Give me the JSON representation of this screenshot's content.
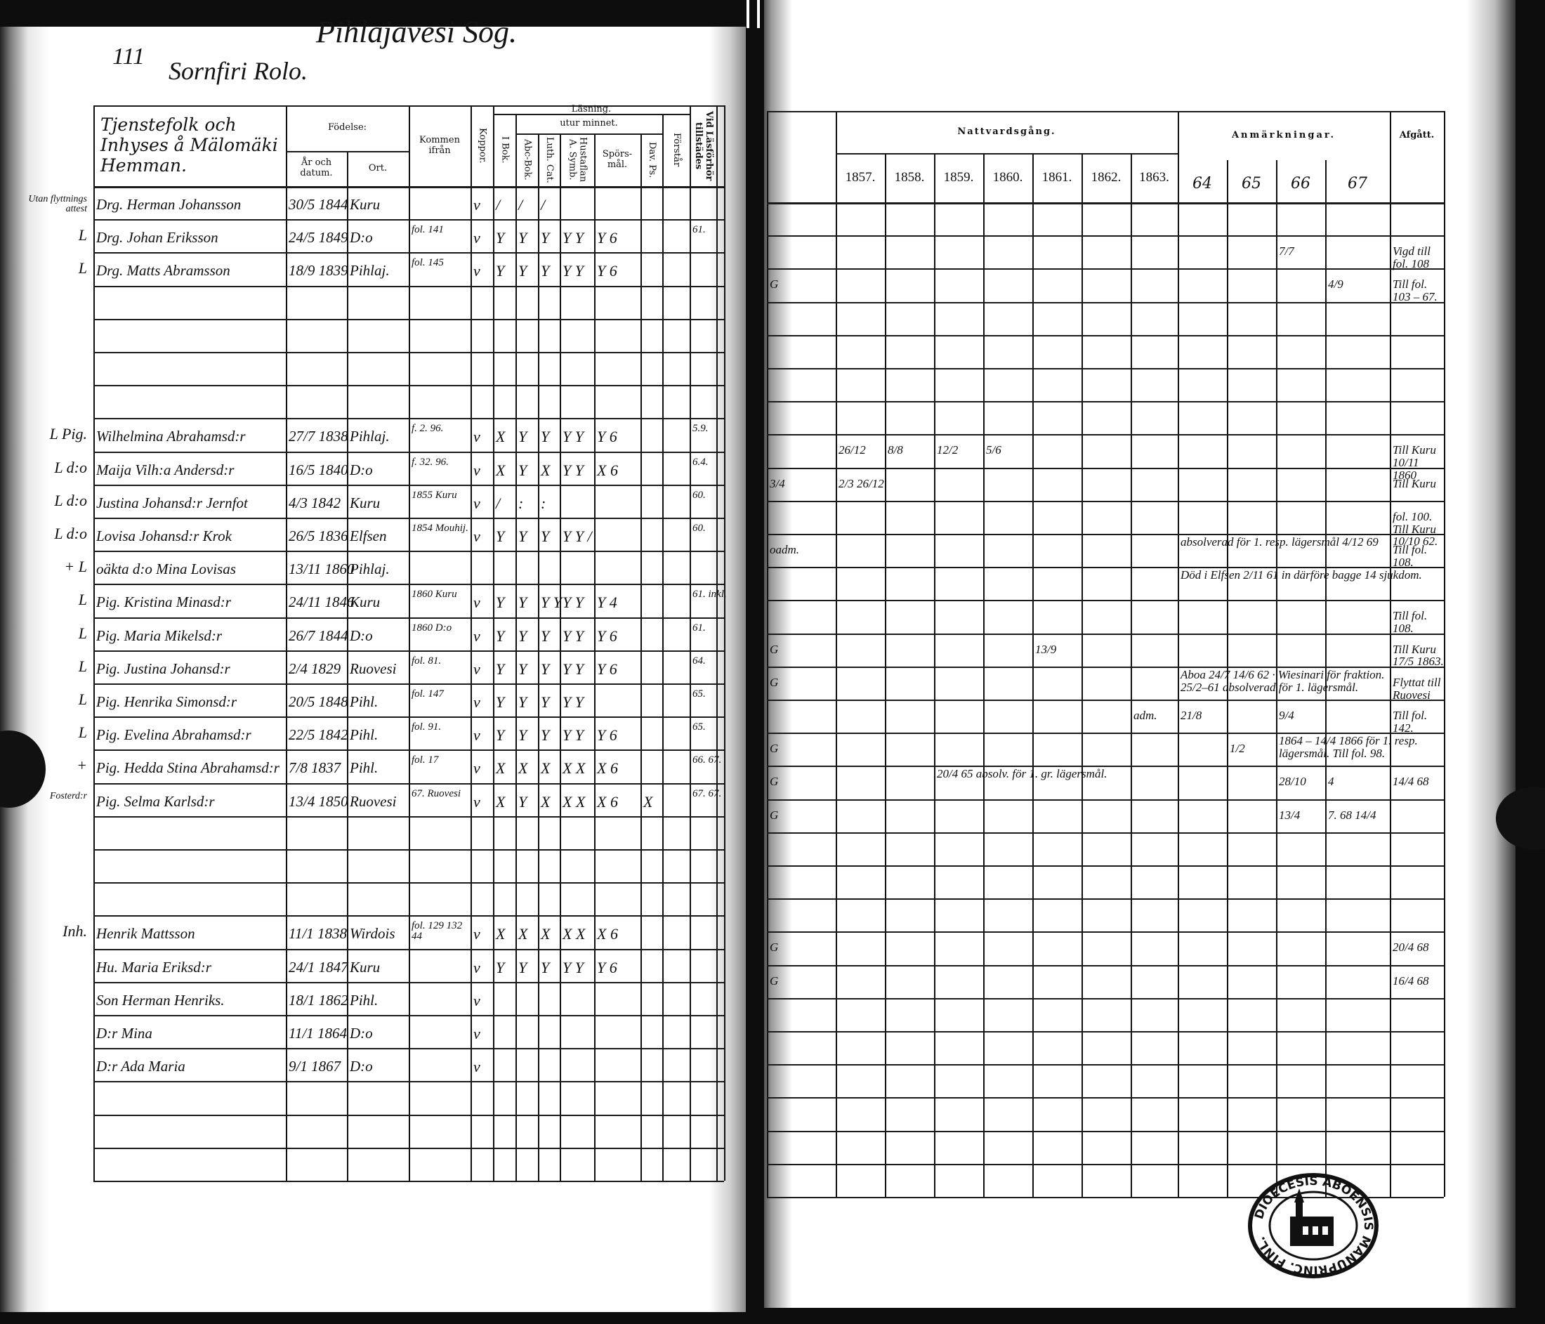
{
  "document": {
    "page_number": "111",
    "parish_heading": "Pihlajavesi Sog.",
    "section_heading": "Sornfiri Rolo.",
    "left_header": {
      "household": "Tjenstefolk och Inhyses å Mälomäki Hemman.",
      "birth": "Födelse:",
      "birth_date": "År och datum.",
      "birth_place": "Ort.",
      "came_from": "Kommen ifrån",
      "koppor": "Koppor.",
      "reading": "Läsning.",
      "by_heart": "utur minnet.",
      "i_bok": "I Bok.",
      "abc_bok": "Abc-Bok.",
      "luth_cat": "Luth. Cat.",
      "hustaflan": "Hustaflan A. Symb.",
      "sporsmal": "Spörs-mål.",
      "dav_ps": "Dav. Ps.",
      "forstar": "Förstår",
      "vid_lasforhor": "Vid Läsförhör tillstädes"
    },
    "right_header": {
      "communion": "Nattvardsgång.",
      "years": [
        "1857.",
        "1858.",
        "1859.",
        "1860.",
        "1861.",
        "1862.",
        "1863."
      ],
      "remarks": "Anmärkningar.",
      "remark_years": [
        "64",
        "65",
        "66",
        "67"
      ],
      "departed": "Afgått."
    },
    "stamp": "DIOECESIS ABOENSIS MANUPRINC. FINL."
  },
  "rows": [
    {
      "margin": "Utan flyttnings attest",
      "name": "Drg. Herman Johansson",
      "born": "30/5 1844",
      "place": "Kuru",
      "koppor": "v",
      "i_bok": "/",
      "abc": "/",
      "luth": "/"
    },
    {
      "margin": "L",
      "name": "Drg. Johan Eriksson",
      "born": "24/5 1849",
      "place": "D:o",
      "from": "fol. 141",
      "koppor": "v",
      "i_bok": "Y",
      "abc": "Y",
      "luth": "Y",
      "husfl": "Y Y",
      "spors": "Y   6",
      "vid": "61.",
      "a66": "7/7",
      "afgatt": "Vigd till fol. 108"
    },
    {
      "margin": "L",
      "name": "Drg. Matts Abramsson",
      "born": "18/9 1839",
      "place": "Pihlaj.",
      "from": "fol. 145",
      "koppor": "v",
      "i_bok": "Y",
      "abc": "Y",
      "luth": "Y",
      "husfl": "Y Y",
      "spors": "Y   6",
      "pre": "G",
      "a67": "4/9",
      "afgatt": "Till fol. 103 – 67."
    },
    {},
    {},
    {},
    {},
    {
      "margin": "L Pig.",
      "name": "Wilhelmina Abrahamsd:r",
      "born": "27/7 1838",
      "place": "Pihlaj.",
      "from": "f. 2. 96.",
      "koppor": "v",
      "i_bok": "X",
      "abc": "Y",
      "luth": "Y",
      "husfl": "Y Y",
      "spors": "Y   6",
      "vid": "5.9.",
      "n1857": "26/12",
      "n1858": "8/8",
      "n1859": "12/2",
      "n1860": "5/6",
      "afgatt": "Till Kuru 10/11 1860"
    },
    {
      "margin": "L d:o",
      "name": "Maija Vilh:a Andersd:r",
      "born": "16/5 1840",
      "place": "D:o",
      "from": "f. 32. 96.",
      "koppor": "v",
      "i_bok": "X",
      "abc": "Y",
      "luth": "X",
      "husfl": "Y Y",
      "spors": "X   6",
      "vid": "6.4.",
      "pre": "3/4",
      "n1857": "2/3  26/12",
      "afgatt": "Till Kuru"
    },
    {
      "margin": "L d:o",
      "name": "Justina Johansd:r Jernfot",
      "born": "4/3 1842",
      "place": "Kuru",
      "from": "1855 Kuru",
      "koppor": "v",
      "i_bok": "/",
      "abc": ":",
      "luth": ":",
      "vid": "60.",
      "afgatt": "fol. 100. Till Kuru 10/10 62."
    },
    {
      "margin": "L d:o",
      "name": "Lovisa Johansd:r Krok",
      "born": "26/5 1836",
      "place": "Elfsen",
      "from": "1854 Mouhij.",
      "koppor": "v",
      "i_bok": "Y",
      "abc": "Y",
      "luth": "Y",
      "husfl": "Y Y /",
      "vid": "60.",
      "pre": "oadm.",
      "a64": "absolverad för 1. resp. lägersmål 4/12 69",
      "afgatt": "Till fol. 108."
    },
    {
      "margin": "+ L",
      "name": "oäkta d:o Mina Lovisas",
      "born": "13/11 1860",
      "place": "Pihlaj.",
      "a64": "Död i Elfsen 2/11 61 in därföre bagge 14 sjukdom."
    },
    {
      "margin": "L",
      "name": "Pig. Kristina Minasd:r",
      "born": "24/11 1846",
      "place": "Kuru",
      "from": "1860 Kuru",
      "koppor": "v",
      "i_bok": "Y",
      "abc": "Y",
      "luth": "Y Y",
      "husfl": "Y Y",
      "spors": "Y   4",
      "vid": "61. inkl.",
      "afgatt": "Till fol. 108."
    },
    {
      "margin": "L",
      "name": "Pig. Maria Mikelsd:r",
      "born": "26/7 1844",
      "place": "D:o",
      "from": "1860 D:o",
      "koppor": "v",
      "i_bok": "Y",
      "abc": "Y",
      "luth": "Y",
      "husfl": "Y Y",
      "spors": "Y   6",
      "vid": "61.",
      "pre": "G",
      "n1861": "13/9",
      "afgatt": "Till Kuru 17/5 1863."
    },
    {
      "margin": "L",
      "name": "Pig. Justina Johansd:r",
      "born": "2/4 1829",
      "place": "Ruovesi",
      "from": "fol. 81.",
      "koppor": "v",
      "i_bok": "Y",
      "abc": "Y",
      "luth": "Y",
      "husfl": "Y Y",
      "spors": "Y   6",
      "vid": "64.",
      "pre": "G",
      "a64": "Aboa 24/7 14/6 62 · Wiesinari för fraktion. 25/2–61 absolverad för 1. lägersmål.",
      "afgatt": "Flyttat till Ruovesi"
    },
    {
      "margin": "L",
      "name": "Pig. Henrika Simonsd:r",
      "born": "20/5 1848",
      "place": "Pihl.",
      "from": "fol. 147",
      "koppor": "v",
      "i_bok": "Y",
      "abc": "Y",
      "luth": "Y",
      "husfl": "Y Y",
      "vid": "65.",
      "n1863": "adm.",
      "a64": "21/8",
      "a66": "9/4",
      "afgatt": "Till fol. 142."
    },
    {
      "margin": "L",
      "name": "Pig. Evelina Abrahamsd:r",
      "born": "22/5 1842",
      "place": "Pihl.",
      "from": "fol. 91.",
      "koppor": "v",
      "i_bok": "Y",
      "abc": "Y",
      "luth": "Y",
      "husfl": "Y Y",
      "spors": "Y   6",
      "vid": "65.",
      "pre": "G",
      "a65": "1/2",
      "a66": "1864 – 14/4 1866 för 1. resp. lägersmål. Till fol. 98."
    },
    {
      "margin": "+",
      "name": "Pig. Hedda Stina Abrahamsd:r",
      "born": "7/8 1837",
      "place": "Pihl.",
      "from": "fol. 17",
      "koppor": "v",
      "i_bok": "X",
      "abc": "X",
      "luth": "X",
      "husfl": "X X",
      "spors": "X   6",
      "vid": "66. 67.",
      "pre": "G",
      "n1859": "20/4 65 absolv. för 1. gr. lägersmål.",
      "a66": "28/10",
      "a67": "4",
      "afgatt": "14/4 68"
    },
    {
      "margin": "Fosterd:r",
      "name": "Pig. Selma Karlsd:r",
      "born": "13/4 1850",
      "place": "Ruovesi",
      "from": "67. Ruovesi",
      "koppor": "v",
      "i_bok": "X",
      "abc": "Y",
      "luth": "X",
      "husfl": "X X",
      "spors": "X   6",
      "dav": "X",
      "vid": "67. 67.",
      "pre": "G",
      "a66": "13/4",
      "a67": "7. 68 14/4"
    },
    {},
    {},
    {},
    {
      "margin": "Inh.",
      "name": "Henrik Mattsson",
      "born": "11/1 1838",
      "place": "Wirdois",
      "from": "fol. 129 132 44",
      "koppor": "v",
      "i_bok": "X",
      "abc": "X",
      "luth": "X",
      "husfl": "X X",
      "spors": "X   6",
      "pre": "G",
      "afgatt": "20/4 68"
    },
    {
      "name": "Hu. Maria Eriksd:r",
      "born": "24/1 1847",
      "place": "Kuru",
      "koppor": "v",
      "i_bok": "Y",
      "abc": "Y",
      "luth": "Y",
      "husfl": "Y Y",
      "spors": "Y   6",
      "pre": "G",
      "afgatt": "16/4 68"
    },
    {
      "name": "Son Herman Henriks.",
      "born": "18/1 1862",
      "place": "Pihl.",
      "koppor": "v"
    },
    {
      "name": "D:r Mina",
      "born": "11/1 1864",
      "place": "D:o",
      "koppor": "v"
    },
    {
      "name": "D:r Ada Maria",
      "born": "9/1 1867",
      "place": "D:o",
      "koppor": "v"
    },
    {},
    {},
    {}
  ]
}
